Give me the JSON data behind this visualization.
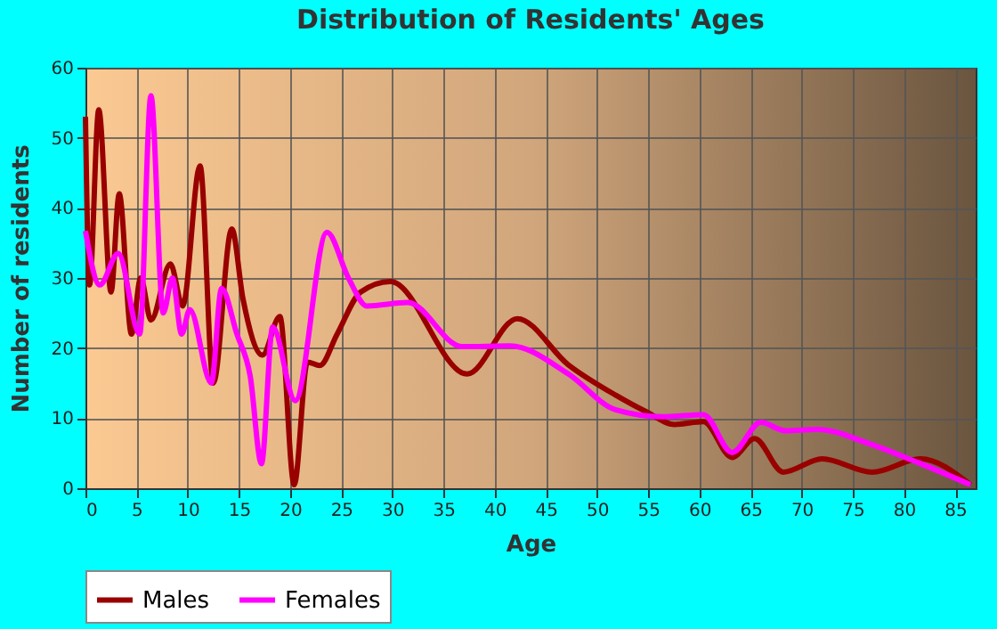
{
  "chart_data": {
    "type": "line",
    "title": "Distribution of Residents' Ages",
    "xlabel": "Age",
    "ylabel": "Number of residents",
    "xlim": [
      0,
      87
    ],
    "ylim": [
      0,
      60
    ],
    "xticks": [
      0,
      5,
      10,
      15,
      20,
      25,
      30,
      35,
      40,
      45,
      50,
      55,
      60,
      65,
      70,
      75,
      80,
      85
    ],
    "yticks": [
      0,
      10,
      20,
      30,
      40,
      50,
      60
    ],
    "grid": true,
    "legend": "bottom",
    "series": [
      {
        "name": "Males",
        "color": "#990000",
        "x": [
          0,
          0.4,
          1.3,
          2.5,
          3.3,
          4.5,
          5.4,
          6.4,
          8.3,
          9.5,
          11.2,
          12.5,
          14.3,
          15.4,
          17.3,
          19,
          20.4,
          21.7,
          22.9,
          24.6,
          26.9,
          29.8,
          37.3,
          42.2,
          47.2,
          51.8,
          54.7,
          57.6,
          60.4,
          63.2,
          65.4,
          68.2,
          72,
          76.9,
          81.6,
          86.5
        ],
        "values": [
          53,
          29,
          54,
          28,
          42,
          22,
          30,
          24,
          32,
          26,
          46,
          15,
          37,
          27,
          19,
          24.5,
          0.5,
          18,
          17.5,
          22,
          28,
          29.5,
          16.3,
          24.2,
          17.6,
          13.3,
          11,
          9.1,
          9.5,
          4.4,
          7.1,
          2.3,
          4.2,
          2.3,
          4.2,
          0.5
        ]
      },
      {
        "name": "Females",
        "color": "#ff00ff",
        "x": [
          0,
          1.4,
          3.2,
          5.3,
          6.4,
          7.6,
          8.5,
          9.4,
          10.2,
          12.3,
          13.3,
          14.8,
          16.1,
          17.2,
          18.3,
          20.5,
          23.6,
          25.7,
          27.5,
          31.5,
          36.8,
          41.5,
          47.2,
          51.8,
          56.4,
          60.4,
          63.2,
          66,
          68.4,
          71.5,
          76.7,
          81.3,
          86.5
        ],
        "values": [
          36.7,
          29,
          33.5,
          22,
          56,
          25,
          30,
          22,
          25.5,
          15,
          28.5,
          22,
          16,
          3.5,
          23,
          12.5,
          36.5,
          30,
          26,
          26.5,
          20.2,
          20.3,
          16.3,
          11.2,
          10.2,
          10.5,
          5.1,
          9.4,
          8.2,
          8.4,
          6.3,
          3.7,
          0.5
        ]
      }
    ]
  }
}
